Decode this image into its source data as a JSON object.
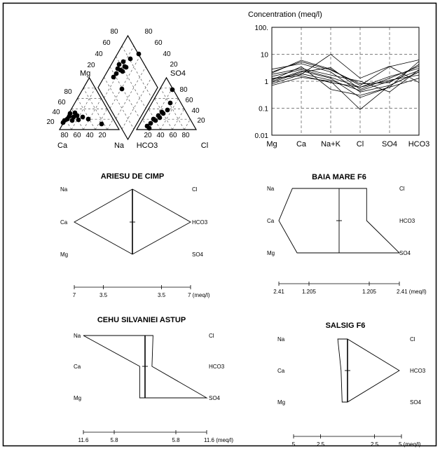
{
  "chart_data": [
    {
      "type": "piper",
      "cation_labels": [
        "Ca",
        "Na",
        "Mg"
      ],
      "anion_labels": [
        "HCO3",
        "Cl",
        "SO4"
      ],
      "tick_labels": [
        "20",
        "40",
        "60",
        "80"
      ]
    },
    {
      "type": "schoeller",
      "title": "Concentration (meq/l)",
      "categories": [
        "Mg",
        "Ca",
        "Na+K",
        "Cl",
        "SO4",
        "HCO3"
      ],
      "yscale": "log",
      "ylim": [
        0.01,
        100
      ],
      "ytick_labels": [
        "0.01",
        "0.1",
        "1",
        "10",
        "100."
      ],
      "grid": true,
      "series": [
        {
          "values": [
            0.8,
            1.8,
            10.0,
            1.3,
            3.6,
            0.9
          ]
        },
        {
          "values": [
            2.2,
            5.3,
            2.6,
            0.8,
            0.9,
            4.2
          ]
        },
        {
          "values": [
            1.5,
            2.7,
            1.4,
            0.6,
            1.5,
            3.0
          ]
        },
        {
          "values": [
            1.1,
            3.5,
            0.5,
            0.3,
            0.6,
            5.5
          ]
        },
        {
          "values": [
            2.8,
            4.5,
            2.2,
            0.4,
            0.7,
            2.2
          ]
        },
        {
          "values": [
            1.3,
            1.6,
            0.9,
            0.6,
            1.1,
            1.7
          ]
        },
        {
          "values": [
            0.7,
            1.4,
            1.0,
            0.09,
            0.7,
            2.2
          ]
        },
        {
          "values": [
            0.9,
            2.2,
            3.2,
            0.5,
            1.3,
            3.6
          ]
        },
        {
          "values": [
            1.8,
            3.0,
            1.7,
            1.0,
            0.4,
            2.7
          ]
        },
        {
          "values": [
            1.0,
            2.4,
            1.3,
            0.25,
            0.6,
            1.3
          ]
        },
        {
          "values": [
            2.0,
            6.0,
            2.8,
            0.7,
            3.5,
            6.2
          ]
        },
        {
          "values": [
            1.2,
            1.9,
            1.1,
            0.45,
            1.0,
            2.5
          ]
        }
      ]
    },
    {
      "type": "stiff",
      "title": "ARIESU DE CIMP",
      "cations": [
        "Na",
        "Ca",
        "Mg"
      ],
      "anions": [
        "Cl",
        "HCO3",
        "SO4"
      ],
      "scale_max": 7,
      "scale_labels": [
        "7",
        "3.5",
        "3.5",
        "7 (meq/l)"
      ],
      "cation_values": [
        0,
        7,
        0
      ],
      "anion_values": [
        0,
        7,
        0
      ]
    },
    {
      "type": "stiff",
      "title": "BAIA MARE F6",
      "cations": [
        "Na",
        "Ca",
        "Mg"
      ],
      "anions": [
        "Cl",
        "HCO3",
        "SO4"
      ],
      "scale_max": 2.41,
      "scale_labels": [
        "2.41",
        "1.205",
        "1.205",
        "2.41 (meq/l)"
      ],
      "cation_values": [
        1.87,
        2.41,
        1.68
      ],
      "anion_values": [
        1.1,
        1.1,
        2.41
      ]
    },
    {
      "type": "stiff",
      "title": "CEHU SILVANIEI ASTUP",
      "cations": [
        "Na",
        "Ca",
        "Mg"
      ],
      "anions": [
        "Cl",
        "HCO3",
        "SO4"
      ],
      "scale_max": 11.6,
      "scale_labels": [
        "11.6",
        "5.8",
        "5.8",
        "11.6 (meq/l)"
      ],
      "cation_values": [
        11.6,
        1.0,
        1.0
      ],
      "anion_values": [
        1.5,
        1.3,
        11.6
      ]
    },
    {
      "type": "stiff",
      "title": "SALSIG F6",
      "cations": [
        "Na",
        "Ca",
        "Mg"
      ],
      "anions": [
        "Cl",
        "HCO3",
        "SO4"
      ],
      "scale_max": 5,
      "scale_labels": [
        "5",
        "2.5",
        "2.5",
        "5 (meq/l)"
      ],
      "cation_values": [
        0.9,
        0.6,
        0.5
      ],
      "anion_values": [
        0,
        4.8,
        0
      ]
    }
  ]
}
